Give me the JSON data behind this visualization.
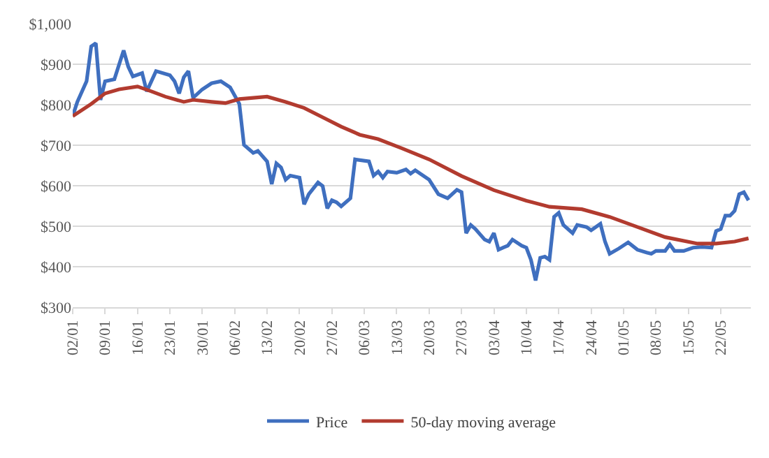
{
  "chart_data": {
    "type": "line",
    "legend": "bottom",
    "grid": "y",
    "marker": "none",
    "line_style": "solid",
    "xlim": [
      "--01-02",
      "--05-28T12:00"
    ],
    "xticks": [
      {
        "value": "--01-02",
        "label": "02/01"
      },
      {
        "value": "--01-09",
        "label": "09/01"
      },
      {
        "value": "--01-16",
        "label": "16/01"
      },
      {
        "value": "--01-23",
        "label": "23/01"
      },
      {
        "value": "--01-30",
        "label": "30/01"
      },
      {
        "value": "--02-06",
        "label": "06/02"
      },
      {
        "value": "--02-13",
        "label": "13/02"
      },
      {
        "value": "--02-20",
        "label": "20/02"
      },
      {
        "value": "--02-27",
        "label": "27/02"
      },
      {
        "value": "--03-06",
        "label": "06/03"
      },
      {
        "value": "--03-13",
        "label": "13/03"
      },
      {
        "value": "--03-20",
        "label": "20/03"
      },
      {
        "value": "--03-27",
        "label": "27/03"
      },
      {
        "value": "--04-03",
        "label": "03/04"
      },
      {
        "value": "--04-10",
        "label": "10/04"
      },
      {
        "value": "--04-17",
        "label": "17/04"
      },
      {
        "value": "--04-24",
        "label": "24/04"
      },
      {
        "value": "--05-01",
        "label": "01/05"
      },
      {
        "value": "--05-08",
        "label": "08/05"
      },
      {
        "value": "--05-15",
        "label": "15/05"
      },
      {
        "value": "--05-22",
        "label": "22/05"
      }
    ],
    "ylim": [
      300,
      1000
    ],
    "yticks": [
      {
        "value": 300,
        "label": "$300"
      },
      {
        "value": 400,
        "label": "$400"
      },
      {
        "value": 500,
        "label": "$500"
      },
      {
        "value": 600,
        "label": "$600"
      },
      {
        "value": 700,
        "label": "$700"
      },
      {
        "value": 800,
        "label": "$800"
      },
      {
        "value": 900,
        "label": "$900"
      },
      {
        "value": 1000,
        "label": "$1,000"
      }
    ],
    "series": [
      {
        "name": "Price",
        "color": "#3f6fbf",
        "x": [
          "--01-02",
          "--01-03",
          "--01-05",
          "--01-06",
          "--01-07",
          "--01-08",
          "--01-09",
          "--01-11",
          "--01-13",
          "--01-14",
          "--01-15",
          "--01-17",
          "--01-18",
          "--01-20",
          "--01-23",
          "--01-24",
          "--01-25",
          "--01-26",
          "--01-27",
          "--01-28",
          "--01-30",
          "--02-01",
          "--02-03",
          "--02-05",
          "--02-07",
          "--02-08",
          "--02-10",
          "--02-11",
          "--02-13",
          "--02-14",
          "--02-15",
          "--02-16",
          "--02-17",
          "--02-18",
          "--02-20",
          "--02-21",
          "--02-22",
          "--02-24",
          "--02-25",
          "--02-26",
          "--02-27",
          "--02-28",
          "--03-01",
          "--03-03",
          "--03-04",
          "--03-07",
          "--03-08",
          "--03-09",
          "--03-10",
          "--03-11",
          "--03-13",
          "--03-15",
          "--03-16",
          "--03-17",
          "--03-20",
          "--03-22",
          "--03-24",
          "--03-26",
          "--03-27",
          "--03-28",
          "--03-29",
          "--03-30",
          "--04-01",
          "--04-02",
          "--04-03",
          "--04-04",
          "--04-05",
          "--04-06",
          "--04-07",
          "--04-09",
          "--04-10",
          "--04-11",
          "--04-12",
          "--04-13",
          "--04-14",
          "--04-15",
          "--04-16",
          "--04-17",
          "--04-18",
          "--04-20",
          "--04-21",
          "--04-23",
          "--04-24",
          "--04-26",
          "--04-27",
          "--04-28",
          "--04-30",
          "--05-02",
          "--05-04",
          "--05-06",
          "--05-07",
          "--05-08",
          "--05-10",
          "--05-11",
          "--05-12",
          "--05-14",
          "--05-16",
          "--05-18",
          "--05-20",
          "--05-21",
          "--05-22",
          "--05-23",
          "--05-24",
          "--05-25",
          "--05-26",
          "--05-27",
          "--05-28"
        ],
        "values": [
          772,
          807,
          858,
          944,
          952,
          812,
          858,
          863,
          934,
          894,
          870,
          878,
          833,
          883,
          873,
          858,
          828,
          868,
          883,
          817,
          838,
          853,
          858,
          843,
          802,
          701,
          681,
          686,
          660,
          604,
          655,
          645,
          615,
          625,
          620,
          554,
          579,
          608,
          599,
          544,
          564,
          559,
          549,
          569,
          665,
          660,
          625,
          635,
          620,
          635,
          632,
          640,
          630,
          638,
          615,
          579,
          569,
          590,
          584,
          483,
          503,
          493,
          467,
          462,
          483,
          442,
          447,
          452,
          467,
          452,
          447,
          417,
          366,
          422,
          425,
          417,
          523,
          533,
          503,
          483,
          503,
          498,
          490,
          506,
          462,
          432,
          445,
          460,
          442,
          435,
          432,
          439,
          439,
          455,
          439,
          439,
          447,
          449,
          447,
          488,
          493,
          526,
          526,
          538,
          579,
          584,
          564
        ]
      },
      {
        "name": "50-day moving average",
        "color": "#b23b2f",
        "x": [
          "--01-02",
          "--01-06",
          "--01-09",
          "--01-12",
          "--01-16",
          "--01-19",
          "--01-22",
          "--01-26",
          "--01-28",
          "--02-01",
          "--02-04",
          "--02-07",
          "--02-13",
          "--02-17",
          "--02-21",
          "--02-25",
          "--03-01",
          "--03-05",
          "--03-09",
          "--03-14",
          "--03-20",
          "--03-27",
          "--04-03",
          "--04-10",
          "--04-15",
          "--04-22",
          "--04-28",
          "--05-04",
          "--05-10",
          "--05-17",
          "--05-21",
          "--05-25",
          "--05-28"
        ],
        "values": [
          772,
          802,
          828,
          838,
          845,
          833,
          820,
          807,
          812,
          807,
          804,
          814,
          820,
          807,
          792,
          769,
          746,
          726,
          715,
          693,
          665,
          624,
          589,
          563,
          548,
          542,
          523,
          498,
          473,
          457,
          457,
          462,
          470
        ]
      }
    ]
  }
}
